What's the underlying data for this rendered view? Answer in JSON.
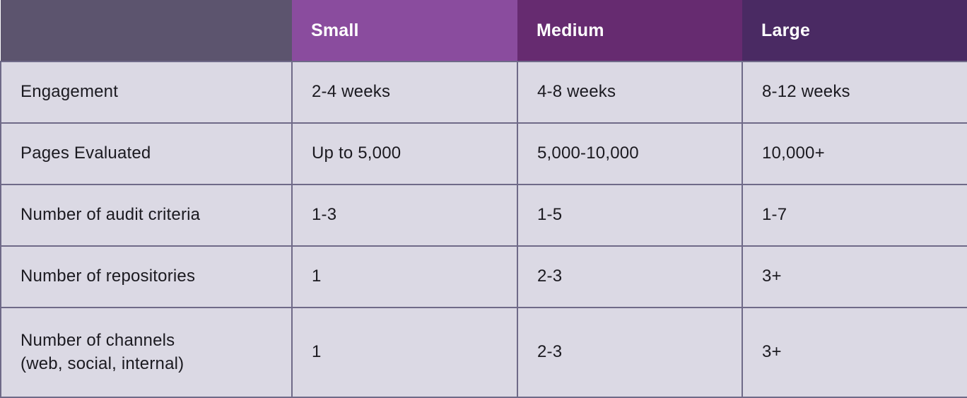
{
  "table": {
    "columns": [
      {
        "label": "",
        "bg": "#5c546e"
      },
      {
        "label": "Small",
        "bg": "#8a4c9e"
      },
      {
        "label": "Medium",
        "bg": "#662b70"
      },
      {
        "label": "Large",
        "bg": "#4a2a63"
      }
    ],
    "rows": [
      {
        "label": "Engagement",
        "values": [
          "2-4 weeks",
          "4-8 weeks",
          "8-12 weeks"
        ]
      },
      {
        "label": "Pages Evaluated",
        "values": [
          "Up to 5,000",
          "5,000-10,000",
          "10,000+"
        ]
      },
      {
        "label": "Number of audit criteria",
        "values": [
          "1-3",
          "1-5",
          "1-7"
        ]
      },
      {
        "label": "Number of repositories",
        "values": [
          "1",
          "2-3",
          "3+"
        ]
      },
      {
        "label": "Number of channels\n(web, social, internal)",
        "values": [
          "1",
          "2-3",
          "3+"
        ]
      }
    ]
  },
  "colors": {
    "body_cell_background": "#dbd9e4",
    "cell_border": "#6f6a88",
    "body_text": "#1b1a20",
    "header_text": "#ffffff",
    "header_blank": "#5c546e",
    "header_small": "#8a4c9e",
    "header_medium": "#662b70",
    "header_large": "#4a2a63"
  }
}
